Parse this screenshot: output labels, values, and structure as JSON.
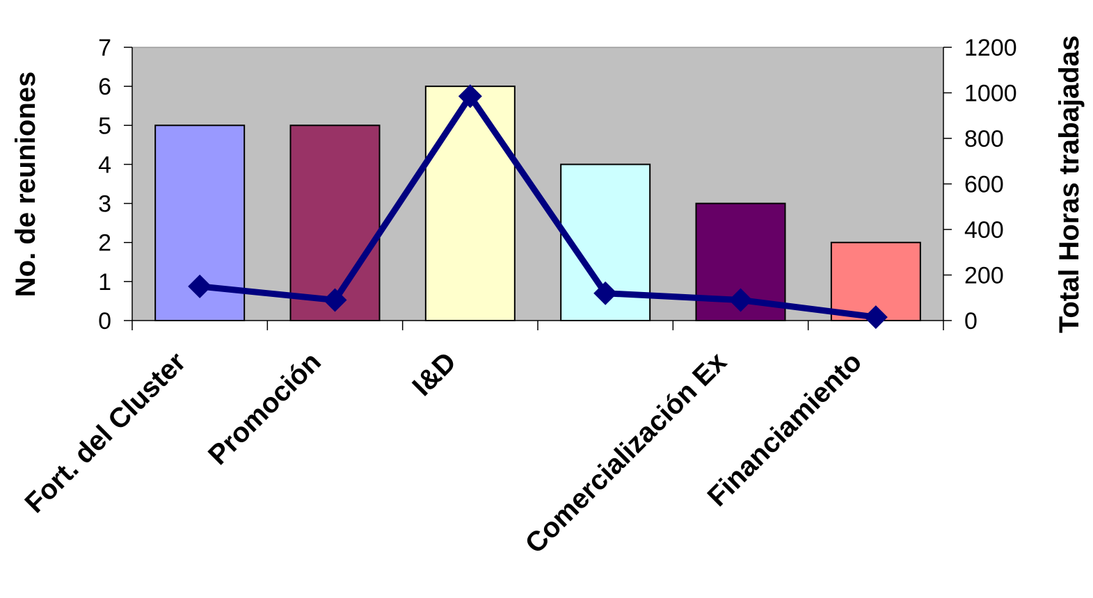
{
  "chart_data": {
    "type": "bar",
    "categories": [
      "Fort. del Cluster",
      "Promoción",
      "I&D",
      "",
      "Comercialización Ex",
      "Financiamiento"
    ],
    "series": [
      {
        "axis": "left",
        "type": "bar",
        "values": [
          5,
          5,
          6,
          4,
          3,
          2
        ],
        "colors": [
          "#9999ff",
          "#993366",
          "#ffffcc",
          "#ccffff",
          "#660066",
          "#ff8080"
        ]
      },
      {
        "axis": "right",
        "type": "line",
        "values": [
          150,
          90,
          985,
          120,
          90,
          15
        ],
        "color": "#000080"
      }
    ],
    "ylabel": "No. de reuniones",
    "y2label": "Total Horas trabajadas",
    "ylim": [
      0,
      7
    ],
    "y2lim": [
      0,
      1200
    ],
    "yticks": [
      "0",
      "1",
      "2",
      "3",
      "4",
      "5",
      "6",
      "7"
    ],
    "y2ticks": [
      "0",
      "200",
      "400",
      "600",
      "800",
      "1000",
      "1200"
    ],
    "plot_background": "#c0c0c0",
    "grid": false,
    "legend": "none"
  }
}
